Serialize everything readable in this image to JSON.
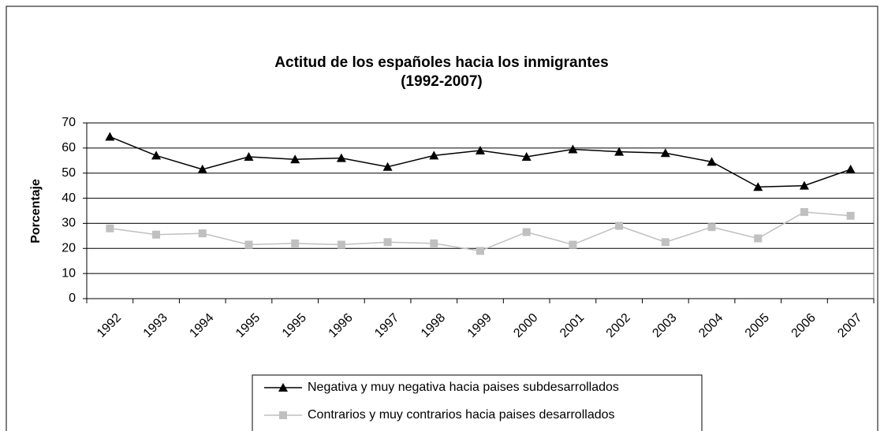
{
  "chart_data": {
    "type": "line",
    "title": [
      "Actitud de los españoles hacia los inmigrantes",
      "(1992-2007)"
    ],
    "y_label": "Porcentaje",
    "categories": [
      "1992",
      "1993",
      "1994",
      "1995",
      "1995",
      "1996",
      "1997",
      "1998",
      "1999",
      "2000",
      "2001",
      "2002",
      "2003",
      "2004",
      "2005",
      "2006",
      "2007"
    ],
    "series": [
      {
        "name": "Negativa y muy negativa hacia paises subdesarrollados",
        "color": "#000000",
        "marker": "triangle",
        "values": [
          64.5,
          57,
          51.5,
          56.5,
          55.5,
          56,
          52.5,
          57,
          59,
          56.5,
          59.5,
          58.5,
          58,
          54.5,
          44.5,
          45,
          51.5
        ]
      },
      {
        "name": "Contrarios y muy contrarios hacia paises desarrollados",
        "color": "#c0c0c0",
        "marker": "square",
        "values": [
          28,
          25.5,
          26,
          21.5,
          22,
          21.5,
          22.5,
          22,
          19,
          26.5,
          21.5,
          29,
          22.5,
          28.5,
          24,
          34.5,
          33
        ]
      }
    ],
    "ylim": [
      0,
      70
    ],
    "yticks": [
      0,
      10,
      20,
      30,
      40,
      50,
      60,
      70
    ],
    "grid": true,
    "legend": "bottom"
  }
}
